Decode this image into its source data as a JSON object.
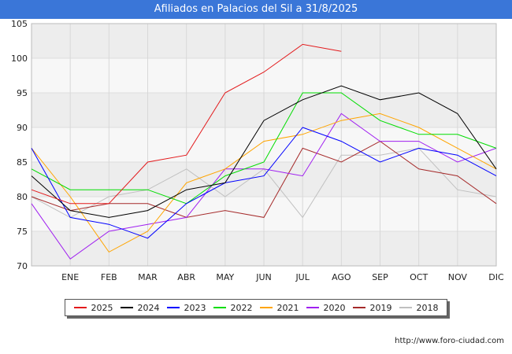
{
  "title": "Afiliados en Palacios del Sil a 31/8/2025",
  "footer": "http://www.foro-ciudad.com",
  "chart_data": {
    "type": "line",
    "categories": [
      "",
      "ENE",
      "FEB",
      "MAR",
      "ABR",
      "MAY",
      "JUN",
      "JUL",
      "AGO",
      "SEP",
      "OCT",
      "NOV",
      "DIC"
    ],
    "ylim": [
      70,
      105
    ],
    "yticks": [
      70,
      75,
      80,
      85,
      90,
      95,
      100,
      105
    ],
    "grid": true,
    "legend_position": "bottom",
    "series": [
      {
        "name": "2025",
        "color": "#e31a1c",
        "values": [
          81,
          79,
          79,
          85,
          86,
          95,
          98,
          102,
          101,
          null,
          null,
          null,
          null
        ]
      },
      {
        "name": "2024",
        "color": "#000000",
        "values": [
          83,
          78,
          77,
          78,
          81,
          82,
          91,
          94,
          96,
          94,
          95,
          92,
          84
        ]
      },
      {
        "name": "2023",
        "color": "#0000ff",
        "values": [
          87,
          77,
          76,
          74,
          79,
          82,
          83,
          90,
          88,
          85,
          87,
          86,
          83
        ]
      },
      {
        "name": "2022",
        "color": "#00dd00",
        "values": [
          84,
          81,
          81,
          81,
          79,
          83,
          85,
          95,
          95,
          91,
          89,
          89,
          87
        ]
      },
      {
        "name": "2021",
        "color": "#ffa500",
        "values": [
          87,
          80,
          72,
          75,
          82,
          84,
          88,
          89,
          91,
          92,
          90,
          87,
          84
        ]
      },
      {
        "name": "2020",
        "color": "#a020f0",
        "values": [
          79,
          71,
          75,
          76,
          77,
          84,
          84,
          83,
          92,
          88,
          88,
          85,
          87
        ]
      },
      {
        "name": "2019",
        "color": "#a52a2a",
        "values": [
          80,
          78,
          79,
          79,
          77,
          78,
          77,
          87,
          85,
          88,
          84,
          83,
          79
        ]
      },
      {
        "name": "2018",
        "color": "#c0c0c0",
        "values": [
          80,
          77,
          80,
          81,
          84,
          80,
          84,
          77,
          86,
          86,
          87,
          81,
          80
        ]
      }
    ]
  }
}
